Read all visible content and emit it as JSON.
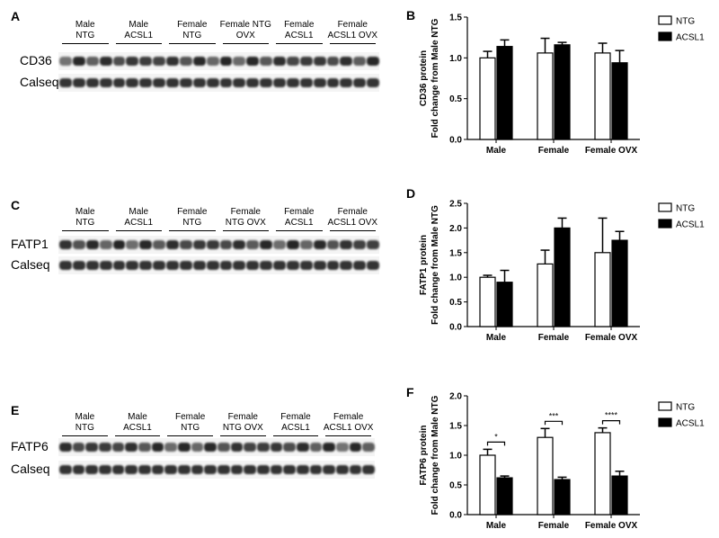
{
  "colors": {
    "ntg": "#ffffff",
    "acsl1": "#000000",
    "axis": "#000000"
  },
  "blots": [
    {
      "letter": "A",
      "groups": [
        "Male\nNTG",
        "Male\nACSL1",
        "Female\nNTG",
        "Female NTG\nOVX",
        "Female\nACSL1",
        "Female\nACSL1 OVX"
      ],
      "bands": [
        "CD36",
        "Calseq"
      ]
    },
    {
      "letter": "C",
      "groups": [
        "Male\nNTG",
        "Male\nACSL1",
        "Female\nNTG",
        "Female\nNTG OVX",
        "Female\nACSL1",
        "Female\nACSL1 OVX"
      ],
      "bands": [
        "FATP1",
        "Calseq"
      ]
    },
    {
      "letter": "E",
      "groups": [
        "Male\nNTG",
        "Male\nACSL1",
        "Female\nNTG",
        "Female\nNTG OVX",
        "Female\nACSL1",
        "Female\nACSL1 OVX"
      ],
      "bands": [
        "FATP6",
        "Calseq"
      ]
    }
  ],
  "chart_data": [
    {
      "letter": "B",
      "type": "bar",
      "categories": [
        "Male",
        "Female",
        "Female OVX"
      ],
      "series": [
        {
          "name": "NTG",
          "values": [
            1.0,
            1.06,
            1.06
          ],
          "errors": [
            0.08,
            0.18,
            0.12
          ]
        },
        {
          "name": "ACSL1",
          "values": [
            1.14,
            1.16,
            0.94
          ],
          "errors": [
            0.08,
            0.03,
            0.15
          ]
        }
      ],
      "ylabel": "CD36 protein\nFold change from Male NTG",
      "ylim": [
        0,
        1.5
      ],
      "yticks": [
        "0.0",
        "0.5",
        "1.0",
        "1.5"
      ],
      "legend": "top-right",
      "significance": []
    },
    {
      "letter": "D",
      "type": "bar",
      "categories": [
        "Male",
        "Female",
        "Female OVX"
      ],
      "series": [
        {
          "name": "NTG",
          "values": [
            1.0,
            1.27,
            1.5
          ],
          "errors": [
            0.04,
            0.28,
            0.7
          ]
        },
        {
          "name": "ACSL1",
          "values": [
            0.9,
            2.0,
            1.75
          ],
          "errors": [
            0.24,
            0.2,
            0.18
          ]
        }
      ],
      "ylabel": "FATP1 protein\nFold change from Male NTG",
      "ylim": [
        0,
        2.5
      ],
      "yticks": [
        "0.0",
        "0.5",
        "1.0",
        "1.5",
        "2.0",
        "2.5"
      ],
      "legend": "top-right",
      "significance": []
    },
    {
      "letter": "F",
      "type": "bar",
      "categories": [
        "Male",
        "Female",
        "Female OVX"
      ],
      "series": [
        {
          "name": "NTG",
          "values": [
            1.0,
            1.3,
            1.38
          ],
          "errors": [
            0.1,
            0.15,
            0.08
          ]
        },
        {
          "name": "ACSL1",
          "values": [
            0.62,
            0.59,
            0.65
          ],
          "errors": [
            0.03,
            0.04,
            0.08
          ]
        }
      ],
      "ylabel": "FATP6 protein\nFold change from Male NTG",
      "ylim": [
        0,
        2.0
      ],
      "yticks": [
        "0.0",
        "0.5",
        "1.0",
        "1.5",
        "2.0"
      ],
      "legend": "top-right",
      "significance": [
        "*",
        "***",
        "****"
      ]
    }
  ]
}
